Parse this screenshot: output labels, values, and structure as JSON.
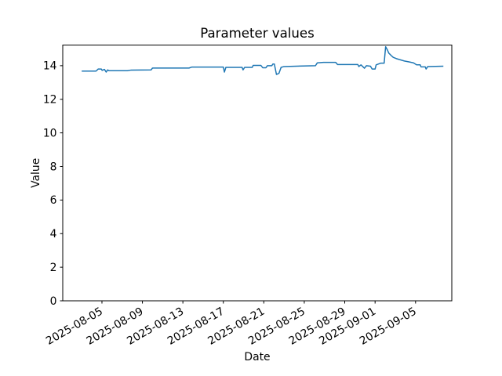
{
  "figure": {
    "background": "#ffffff",
    "axis_color": "#000000",
    "text_color": "#000000"
  },
  "chart_data": {
    "type": "line",
    "title": "Parameter values",
    "xlabel": "Date",
    "ylabel": "Value",
    "grid": false,
    "legend": null,
    "xlim": [
      "2025-08-01T03:00",
      "2025-09-08T14:00"
    ],
    "ylim": [
      0,
      15.23
    ],
    "xticks": {
      "values": [
        "2025-08-05T00:00",
        "2025-08-09T00:00",
        "2025-08-13T00:00",
        "2025-08-17T00:00",
        "2025-08-21T00:00",
        "2025-08-25T00:00",
        "2025-08-29T00:00",
        "2025-09-01T00:00",
        "2025-09-05T00:00"
      ],
      "labels": [
        "2025-08-05",
        "2025-08-09",
        "2025-08-13",
        "2025-08-17",
        "2025-08-21",
        "2025-08-25",
        "2025-08-29",
        "2025-09-01",
        "2025-09-05"
      ]
    },
    "yticks": {
      "values": [
        0,
        2,
        4,
        6,
        8,
        10,
        12,
        14
      ],
      "labels": [
        "0",
        "2",
        "4",
        "6",
        "8",
        "10",
        "12",
        "14"
      ]
    },
    "series": [
      {
        "name": "parameter-values",
        "color": "#1f77b4",
        "x": [
          "2025-08-03T00:00",
          "2025-08-04T10:00",
          "2025-08-04T15:00",
          "2025-08-04T22:30",
          "2025-08-05T00:30",
          "2025-08-05T06:00",
          "2025-08-05T10:00",
          "2025-08-05T13:30",
          "2025-08-05T17:00",
          "2025-08-07T12:00",
          "2025-08-07T21:30",
          "2025-08-09T20:30",
          "2025-08-10T00:00",
          "2025-08-13T14:30",
          "2025-08-13T21:30",
          "2025-08-17T00:00",
          "2025-08-17T02:30",
          "2025-08-17T06:00",
          "2025-08-18T20:30",
          "2025-08-18T22:45",
          "2025-08-19T02:30",
          "2025-08-19T20:30",
          "2025-08-19T22:45",
          "2025-08-20T17:00",
          "2025-08-20T21:30",
          "2025-08-21T05:00",
          "2025-08-21T08:30",
          "2025-08-21T19:00",
          "2025-08-21T21:30",
          "2025-08-22T01:00",
          "2025-08-22T06:00",
          "2025-08-22T12:00",
          "2025-08-22T17:00",
          "2025-08-23T00:00",
          "2025-08-26T02:30",
          "2025-08-26T07:00",
          "2025-08-26T21:30",
          "2025-08-28T02:30",
          "2025-08-28T07:00",
          "2025-08-30T07:00",
          "2025-08-30T09:30",
          "2025-08-30T14:30",
          "2025-08-30T22:45",
          "2025-08-31T03:30",
          "2025-08-31T13:00",
          "2025-08-31T17:00",
          "2025-09-01T00:00",
          "2025-09-01T02:30",
          "2025-09-01T13:00",
          "2025-09-01T21:30",
          "2025-09-02T01:00",
          "2025-09-02T05:00",
          "2025-09-02T08:30",
          "2025-09-02T14:30",
          "2025-09-02T19:00",
          "2025-09-03T02:30",
          "2025-09-03T12:00",
          "2025-09-03T21:30",
          "2025-09-04T09:30",
          "2025-09-04T19:00",
          "2025-09-05T02:30",
          "2025-09-05T11:00",
          "2025-09-05T13:00",
          "2025-09-05T23:00",
          "2025-09-06T01:00",
          "2025-09-06T05:00",
          "2025-09-07T18:00"
        ],
        "y": [
          13.68,
          13.68,
          13.8,
          13.8,
          13.72,
          13.78,
          13.62,
          13.75,
          13.7,
          13.7,
          13.74,
          13.75,
          13.86,
          13.86,
          13.92,
          13.92,
          13.62,
          13.9,
          13.9,
          13.75,
          13.9,
          13.9,
          14.02,
          14.02,
          13.88,
          13.88,
          14.0,
          14.0,
          14.1,
          14.1,
          13.48,
          13.55,
          13.9,
          13.95,
          14.0,
          14.17,
          14.2,
          14.2,
          14.07,
          14.07,
          13.95,
          14.05,
          13.85,
          14.0,
          13.97,
          13.8,
          13.8,
          14.05,
          14.15,
          14.15,
          15.13,
          14.95,
          14.75,
          14.6,
          14.5,
          14.42,
          14.35,
          14.28,
          14.22,
          14.17,
          14.05,
          14.05,
          13.93,
          13.93,
          13.8,
          13.95,
          13.97
        ]
      }
    ]
  }
}
